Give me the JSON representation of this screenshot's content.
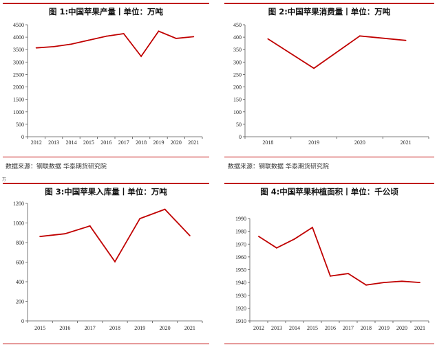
{
  "chart_data": [
    {
      "type": "line",
      "title": "图 1:中国苹果产量丨单位：万吨",
      "categories": [
        "2012",
        "2013",
        "2014",
        "2015",
        "2016",
        "2017",
        "2018",
        "2019",
        "2020",
        "2021"
      ],
      "series": [
        {
          "values": [
            3570,
            3620,
            3720,
            3880,
            4040,
            4140,
            3230,
            4240,
            3950,
            4020
          ]
        }
      ],
      "ylim": [
        0,
        4500
      ],
      "yticks": [
        0,
        500,
        1000,
        1500,
        2000,
        2500,
        3000,
        3500,
        4000,
        4500
      ],
      "color": "#c00000",
      "grid": false
    },
    {
      "type": "line",
      "title": "图 2:中国苹果消费量丨单位：万吨",
      "categories": [
        "2018",
        "2019",
        "2020",
        "2021"
      ],
      "series": [
        {
          "values": [
            393,
            275,
            405,
            387
          ]
        }
      ],
      "ylim": [
        0,
        450
      ],
      "yticks": [
        0,
        50,
        100,
        150,
        200,
        250,
        300,
        350,
        400,
        450
      ],
      "color": "#c00000",
      "grid": false
    },
    {
      "type": "line",
      "title": "图 3:中国苹果入库量丨单位：万吨",
      "categories": [
        "2015",
        "2016",
        "2017",
        "2018",
        "2019",
        "2020",
        "2021"
      ],
      "series": [
        {
          "values": [
            862,
            890,
            970,
            605,
            1045,
            1140,
            870
          ]
        }
      ],
      "ylim": [
        0,
        1200
      ],
      "yticks": [
        0,
        200,
        400,
        600,
        800,
        1000,
        1200
      ],
      "color": "#c00000",
      "grid": false
    },
    {
      "type": "line",
      "title": "图 4:中国苹果种植面积丨单位：千公顷",
      "categories": [
        "2012",
        "2013",
        "2014",
        "2015",
        "2016",
        "2017",
        "2018",
        "2019",
        "2020",
        "2021"
      ],
      "series": [
        {
          "values": [
            1976,
            1967,
            1974,
            1983,
            1945,
            1947,
            1938,
            1940,
            1941,
            1940
          ]
        }
      ],
      "ylim": [
        1910,
        1990
      ],
      "yticks": [
        1910,
        1920,
        1930,
        1940,
        1950,
        1960,
        1970,
        1980,
        1990
      ],
      "color": "#c00000",
      "grid": false
    }
  ],
  "sources": {
    "left": "数据来源：钢联数据  华泰期货研究院",
    "right": "数据来源：钢联数据  华泰期货研究院"
  },
  "stray_mark": "万"
}
